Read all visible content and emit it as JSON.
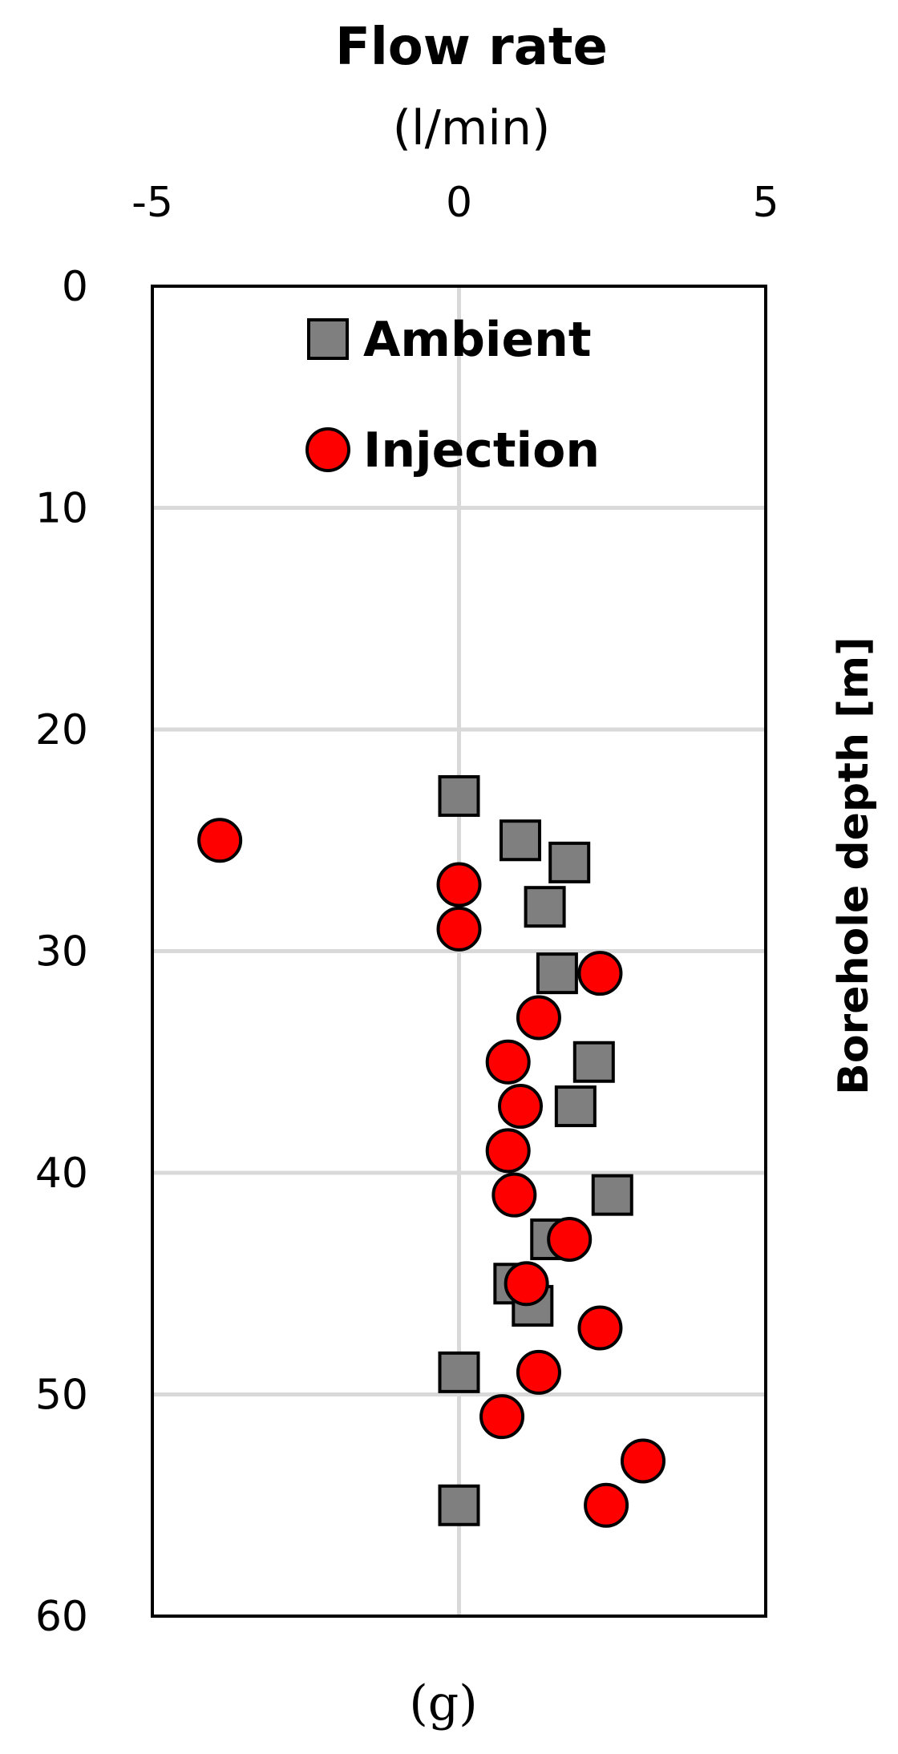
{
  "chart_data": {
    "type": "scatter",
    "title": "Flow rate",
    "xlabel": "(l/min)",
    "ylabel": "Borehole depth [m]",
    "caption": "(g)",
    "xlim": [
      -5,
      5
    ],
    "ylim": [
      0,
      60
    ],
    "y_inverted": true,
    "x_axis_position": "top",
    "y_label_position": "right",
    "xticks": [
      -5,
      0,
      5
    ],
    "yticks": [
      0,
      10,
      20,
      30,
      40,
      50,
      60
    ],
    "grid": true,
    "legend_position": "top-inside",
    "series": [
      {
        "name": "Ambient",
        "marker": "square",
        "color": "#7f7f7f",
        "points": [
          {
            "x": 0.0,
            "y": 23
          },
          {
            "x": 1.0,
            "y": 25
          },
          {
            "x": 1.8,
            "y": 26
          },
          {
            "x": 1.4,
            "y": 28
          },
          {
            "x": 1.6,
            "y": 31
          },
          {
            "x": 2.2,
            "y": 35
          },
          {
            "x": 1.9,
            "y": 37
          },
          {
            "x": 2.5,
            "y": 41
          },
          {
            "x": 1.5,
            "y": 43
          },
          {
            "x": 0.9,
            "y": 45
          },
          {
            "x": 1.2,
            "y": 46
          },
          {
            "x": 0.0,
            "y": 49
          },
          {
            "x": 0.0,
            "y": 55
          }
        ]
      },
      {
        "name": "Injection",
        "marker": "circle",
        "color": "#ff0000",
        "points": [
          {
            "x": -3.9,
            "y": 25
          },
          {
            "x": 0.0,
            "y": 27
          },
          {
            "x": 0.0,
            "y": 29
          },
          {
            "x": 2.3,
            "y": 31
          },
          {
            "x": 1.3,
            "y": 33
          },
          {
            "x": 0.8,
            "y": 35
          },
          {
            "x": 1.0,
            "y": 37
          },
          {
            "x": 0.8,
            "y": 39
          },
          {
            "x": 0.9,
            "y": 41
          },
          {
            "x": 1.8,
            "y": 43
          },
          {
            "x": 1.1,
            "y": 45
          },
          {
            "x": 2.3,
            "y": 47
          },
          {
            "x": 1.3,
            "y": 49
          },
          {
            "x": 0.7,
            "y": 51
          },
          {
            "x": 3.0,
            "y": 53
          },
          {
            "x": 2.4,
            "y": 55
          }
        ]
      }
    ]
  }
}
